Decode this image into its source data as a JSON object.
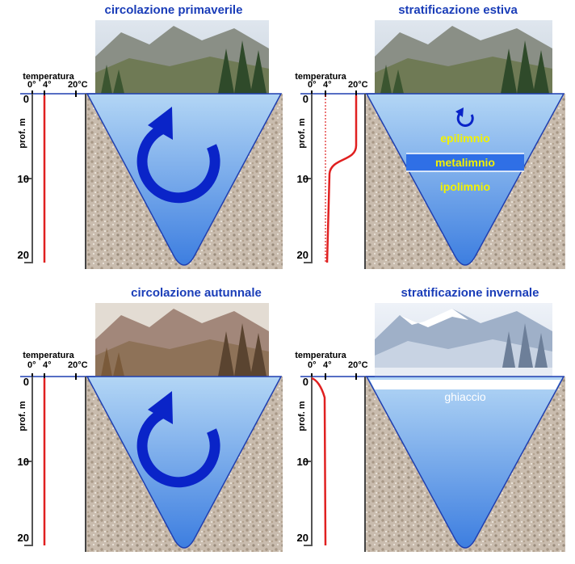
{
  "panels": {
    "p1": {
      "title": "circolazione primaverile"
    },
    "p2": {
      "title": "stratificazione estiva",
      "layers": [
        "epilimnio",
        "metalimnio",
        "ipolimnio"
      ]
    },
    "p3": {
      "title": "circolazione autunnale"
    },
    "p4": {
      "title": "stratificazione invernale",
      "ice_label": "ghiaccio"
    }
  },
  "axis": {
    "temperature_label": "temperatura",
    "temp_ticks": [
      "0°",
      "4°",
      "20°C"
    ],
    "depth_label": "prof. m",
    "depth_ticks": [
      "0",
      "10",
      "20"
    ]
  },
  "colors": {
    "title": "#1a3db8",
    "water_top": "#a9cff3",
    "water_bottom": "#3f7fe0",
    "arrow": "#0a24c8",
    "profile": "#e02020",
    "layer_text": "#f2f200"
  }
}
